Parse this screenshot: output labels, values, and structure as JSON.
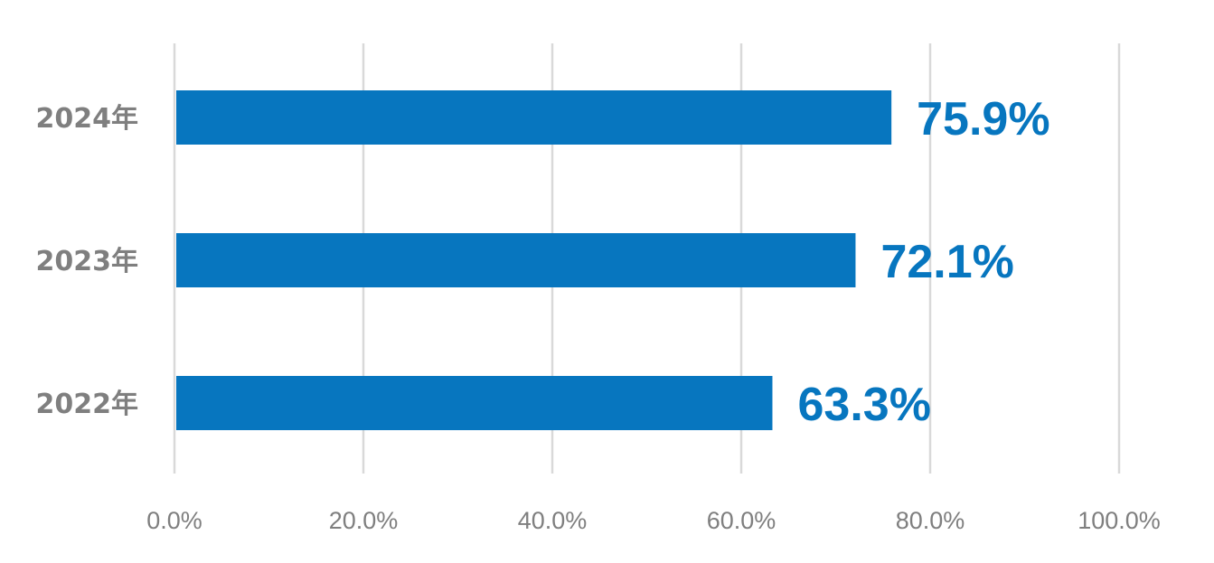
{
  "chart_data": {
    "type": "bar",
    "orientation": "horizontal",
    "title": "",
    "xlabel": "",
    "ylabel": "",
    "categories": [
      "2024年",
      "2023年",
      "2022年"
    ],
    "values": [
      75.9,
      72.1,
      63.3
    ],
    "data_labels": [
      "75.9%",
      "72.1%",
      "63.3%"
    ],
    "xlim": [
      0,
      100
    ],
    "x_ticks": [
      0,
      20,
      40,
      60,
      80,
      100
    ],
    "x_tick_labels": [
      "0.0%",
      "20.0%",
      "40.0%",
      "60.0%",
      "80.0%",
      "100.0%"
    ],
    "grid": "vertical",
    "legend": "none",
    "colors": {
      "bar": "#0776bf",
      "data_label": "#0776bf",
      "grid": "#d9d9d9",
      "axis_text": "#7f7f7f"
    }
  }
}
